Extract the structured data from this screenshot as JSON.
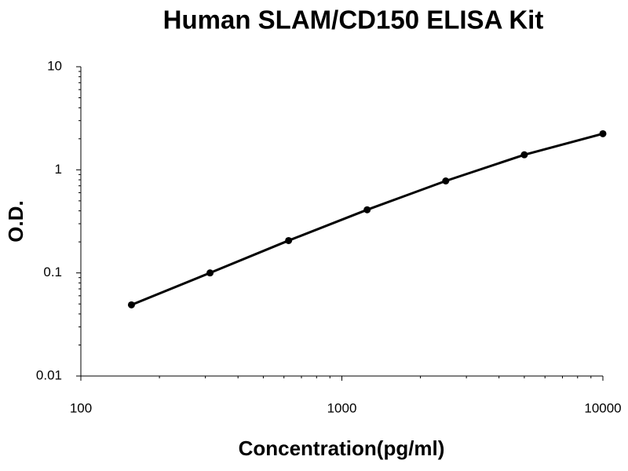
{
  "chart_data": {
    "type": "line",
    "title": "Human SLAM/CD150 ELISA Kit",
    "x_label": "Concentration(pg/ml)",
    "y_label": "O.D.",
    "x": [
      156.25,
      312.5,
      625,
      1250,
      2500,
      5000,
      10000
    ],
    "series": [
      {
        "color": "#000000",
        "values": [
          0.049,
          0.1,
          0.206,
          0.41,
          0.78,
          1.4,
          2.24
        ]
      }
    ],
    "xlim": [
      100,
      10000
    ],
    "ylim": [
      0.01,
      10
    ],
    "xticks": [
      100,
      1000,
      10000
    ],
    "yticks": [
      0.01,
      0.1,
      1,
      10
    ],
    "xscale": "log",
    "yscale": "log",
    "minor_ticks": true,
    "markers": true
  }
}
